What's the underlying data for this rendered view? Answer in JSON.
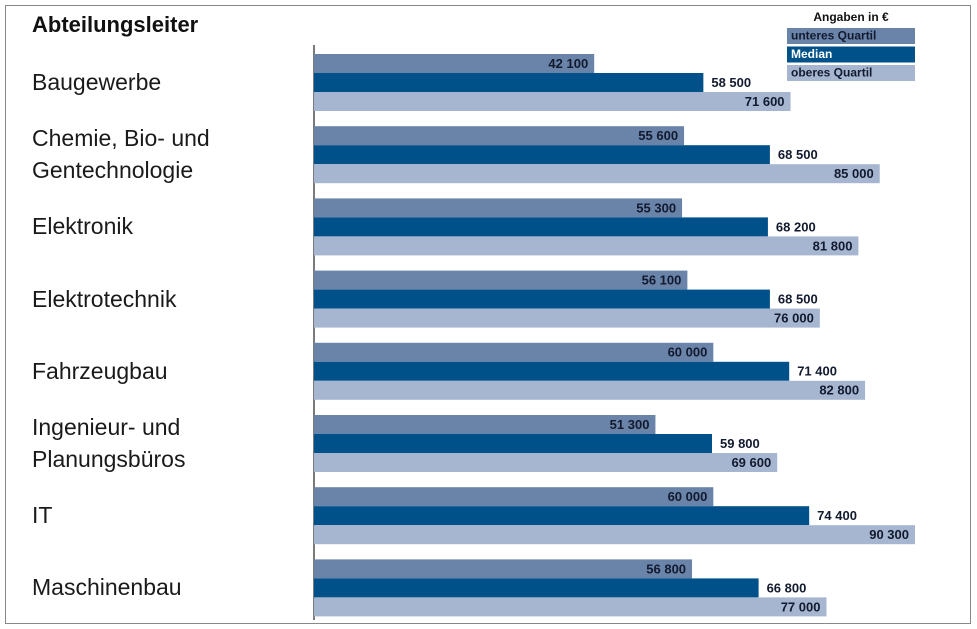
{
  "chart_data": {
    "type": "hbar",
    "title": "Abteilungsleiter",
    "legend_title": "Angaben in €",
    "legend_position": "top-right",
    "categories": [
      "Baugewerbe",
      "Chemie, Bio- und\nGentechnologie",
      "Elektronik",
      "Elektrotechnik",
      "Fahrzeugbau",
      "Ingenieur- und\nPlanungsbüros",
      "IT",
      "Maschinenbau"
    ],
    "series": [
      {
        "name": "unteres Quartil",
        "color": "#6a83a8",
        "values": [
          42100,
          55600,
          55300,
          56100,
          60000,
          51300,
          60000,
          56800
        ],
        "value_labels": [
          "42 100",
          "55 600",
          "55 300",
          "56 100",
          "60 000",
          "51 300",
          "60 000",
          "56 800"
        ]
      },
      {
        "name": "Median",
        "color": "#00508a",
        "values": [
          58500,
          68500,
          68200,
          68500,
          71400,
          59800,
          74400,
          66800
        ],
        "value_labels": [
          "58 500",
          "68 500",
          "68 200",
          "68 500",
          "71 400",
          "59 800",
          "74 400",
          "66 800"
        ]
      },
      {
        "name": "oberes Quartil",
        "color": "#a7b6d0",
        "values": [
          71600,
          85000,
          81800,
          76000,
          82800,
          69600,
          90300,
          77000
        ],
        "value_labels": [
          "71 600",
          "85 000",
          "81 800",
          "76 000",
          "82 800",
          "69 600",
          "90 300",
          "77 000"
        ]
      }
    ]
  }
}
